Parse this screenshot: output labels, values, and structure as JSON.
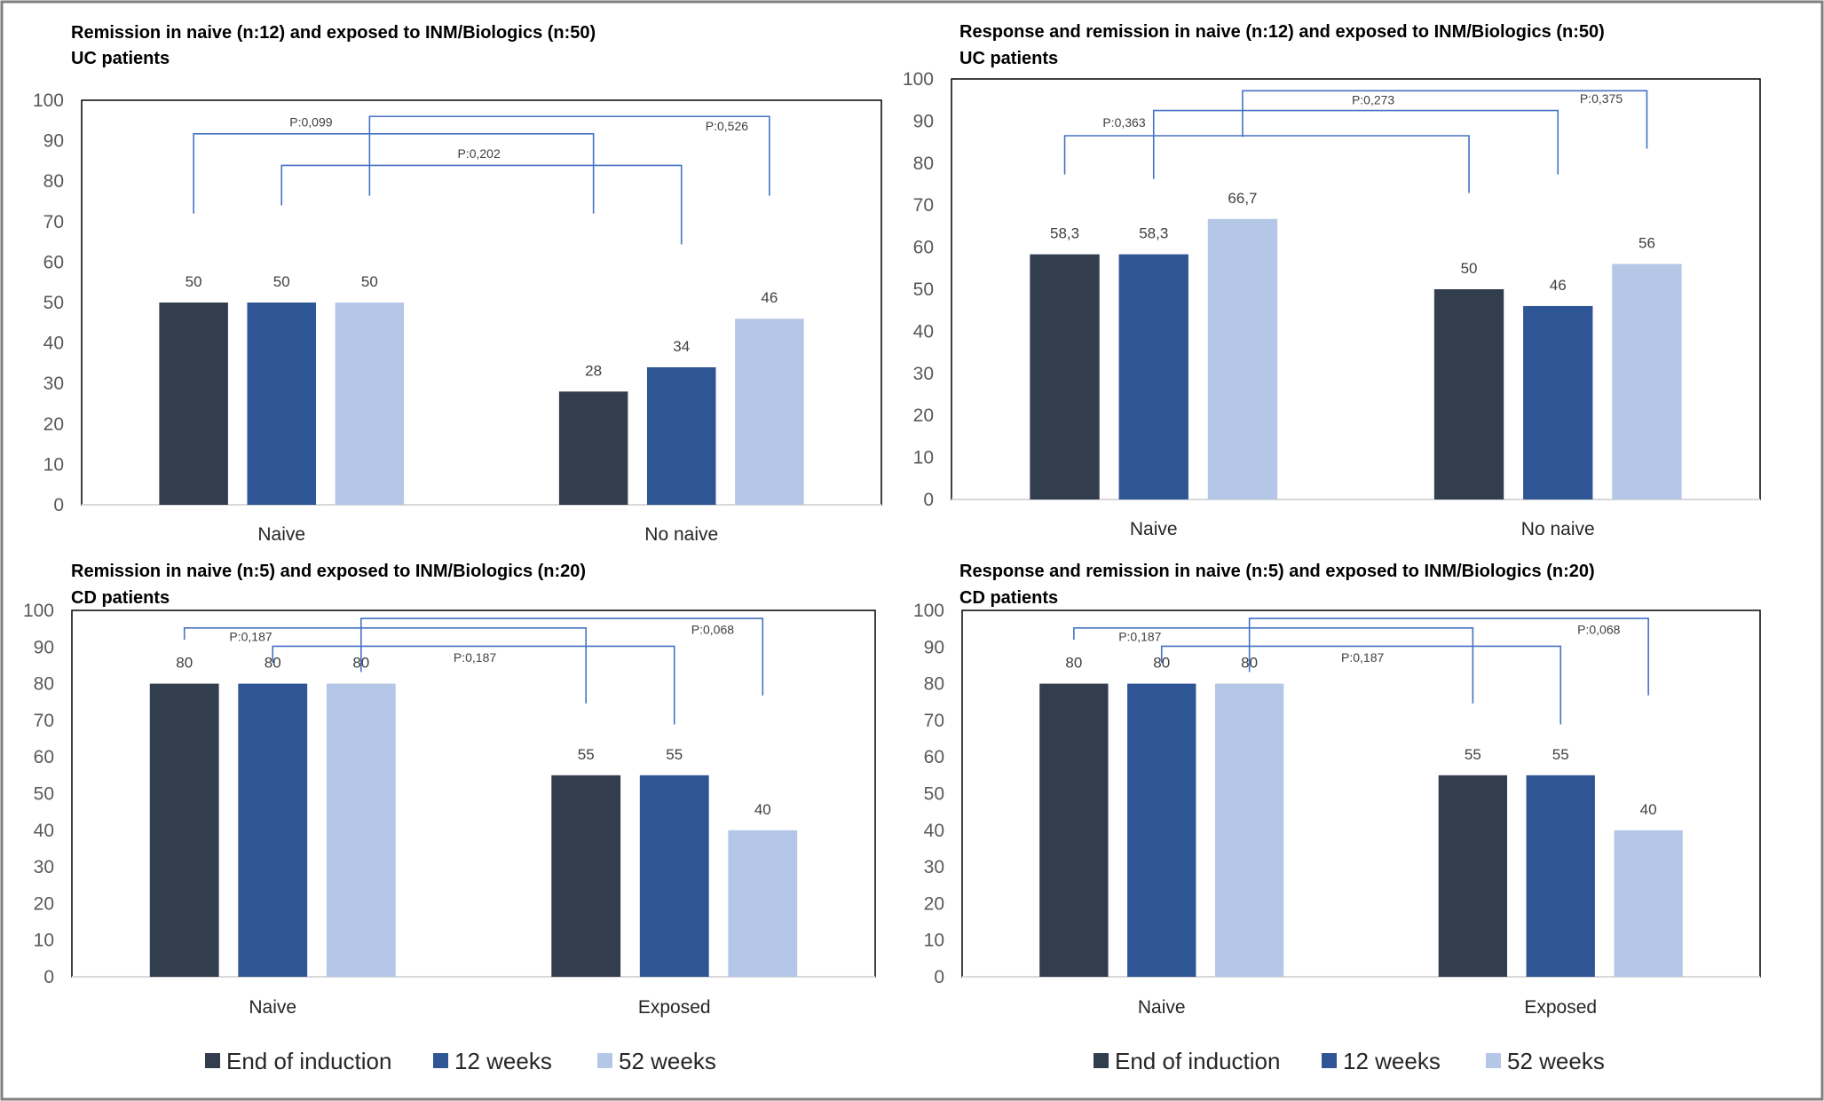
{
  "legend": [
    "End of induction",
    "12 weeks",
    "52 weeks"
  ],
  "colors": {
    "End of induction": "#323d4d",
    "12 weeks": "#2e5594",
    "52 weeks": "#b4c7e7",
    "bracket": "#4472c4"
  },
  "chart_data": [
    {
      "type": "bar",
      "title": "Remission in naive (n:12) and exposed to INM/Biologics (n:50)",
      "subtitle": "UC patients",
      "categories": [
        "Naive",
        "No naive"
      ],
      "series": [
        {
          "name": "End of induction",
          "values": [
            50,
            28
          ]
        },
        {
          "name": "12 weeks",
          "values": [
            50,
            34
          ]
        },
        {
          "name": "52 weeks",
          "values": [
            50,
            46
          ]
        }
      ],
      "data_labels": [
        [
          "50",
          "28"
        ],
        [
          "50",
          "34"
        ],
        [
          "50",
          "46"
        ]
      ],
      "ylim": [
        0,
        100
      ],
      "yticks": [
        "0",
        "10",
        "20",
        "30",
        "40",
        "50",
        "60",
        "70",
        "80",
        "90",
        "100"
      ],
      "p_values": [
        "P:0,099",
        "P:0,202",
        "P:0,526"
      ],
      "legend": "bottom",
      "grid": false
    },
    {
      "type": "bar",
      "title": "Response and remission in naive (n:12) and exposed to INM/Biologics (n:50)",
      "subtitle": "UC patients",
      "categories": [
        "Naive",
        "No naive"
      ],
      "series": [
        {
          "name": "End of induction",
          "values": [
            58.3,
            50
          ]
        },
        {
          "name": "12 weeks",
          "values": [
            58.3,
            46
          ]
        },
        {
          "name": "52 weeks",
          "values": [
            66.7,
            56
          ]
        }
      ],
      "data_labels": [
        [
          "58,3",
          "50"
        ],
        [
          "58,3",
          "46"
        ],
        [
          "66,7",
          "56"
        ]
      ],
      "ylim": [
        0,
        100
      ],
      "yticks": [
        "0",
        "10",
        "20",
        "30",
        "40",
        "50",
        "60",
        "70",
        "80",
        "90",
        "100"
      ],
      "p_values": [
        "P:0,363",
        "P:0,273",
        "P:0,375"
      ],
      "legend": "bottom",
      "grid": false
    },
    {
      "type": "bar",
      "title": "Remission in naive (n:5) and exposed to INM/Biologics (n:20)",
      "subtitle": "CD patients",
      "categories": [
        "Naive",
        "Exposed"
      ],
      "series": [
        {
          "name": "End of induction",
          "values": [
            80,
            55
          ]
        },
        {
          "name": "12 weeks",
          "values": [
            80,
            55
          ]
        },
        {
          "name": "52 weeks",
          "values": [
            80,
            40
          ]
        }
      ],
      "data_labels": [
        [
          "80",
          "55"
        ],
        [
          "80",
          "55"
        ],
        [
          "80",
          "40"
        ]
      ],
      "ylim": [
        0,
        100
      ],
      "yticks": [
        "0",
        "10",
        "20",
        "30",
        "40",
        "50",
        "60",
        "70",
        "80",
        "90",
        "100"
      ],
      "p_values": [
        "P:0,187",
        "P:0,187",
        "P:0,068"
      ],
      "legend": "bottom",
      "grid": false
    },
    {
      "type": "bar",
      "title": "Response and remission in naive (n:5) and exposed to INM/Biologics (n:20)",
      "subtitle": "CD patients",
      "categories": [
        "Naive",
        "Exposed"
      ],
      "series": [
        {
          "name": "End of induction",
          "values": [
            80,
            55
          ]
        },
        {
          "name": "12 weeks",
          "values": [
            80,
            55
          ]
        },
        {
          "name": "52 weeks",
          "values": [
            80,
            40
          ]
        }
      ],
      "data_labels": [
        [
          "80",
          "55"
        ],
        [
          "80",
          "55"
        ],
        [
          "80",
          "40"
        ]
      ],
      "ylim": [
        0,
        100
      ],
      "yticks": [
        "0",
        "10",
        "20",
        "30",
        "40",
        "50",
        "60",
        "70",
        "80",
        "90",
        "100"
      ],
      "p_values": [
        "P:0,187",
        "P:0,187",
        "P:0,068"
      ],
      "legend": "bottom",
      "grid": false
    }
  ]
}
